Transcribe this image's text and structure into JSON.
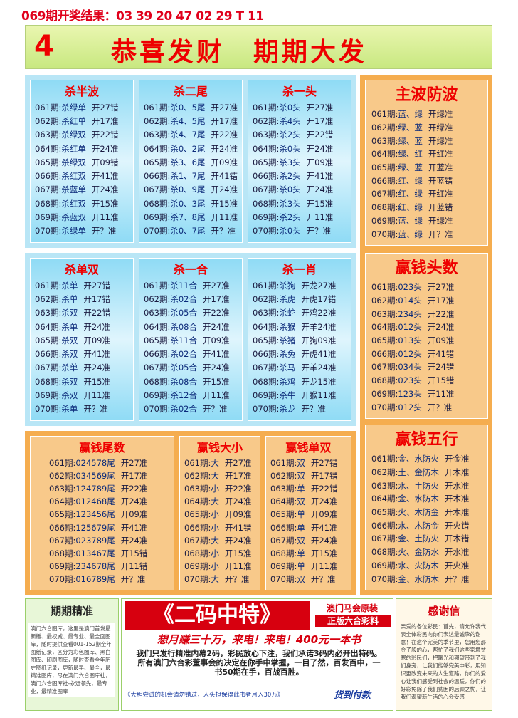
{
  "header": {
    "result": "069期开奖结果：03 39 20 47 02 29 T 11",
    "number": "4",
    "slogan": "恭喜发财　期期大发"
  },
  "panels": [
    {
      "title": "杀半波",
      "rows": [
        [
          "061期:",
          "杀绿单",
          "开27错"
        ],
        [
          "062期:",
          "杀红单",
          "开17准"
        ],
        [
          "063期:",
          "杀绿双",
          "开22错"
        ],
        [
          "064期:",
          "杀红单",
          "开24准"
        ],
        [
          "065期:",
          "杀绿双",
          "开09错"
        ],
        [
          "066期:",
          "杀红双",
          "开41准"
        ],
        [
          "067期:",
          "杀蓝单",
          "开24准"
        ],
        [
          "068期:",
          "杀红双",
          "开15准"
        ],
        [
          "069期:",
          "杀蓝双",
          "开11准"
        ],
        [
          "070期:",
          "杀绿单",
          "开？准"
        ]
      ]
    },
    {
      "title": "杀二尾",
      "rows": [
        [
          "061期:",
          "杀0、5尾",
          "开27准"
        ],
        [
          "062期:",
          "杀4、5尾",
          "开17准"
        ],
        [
          "063期:",
          "杀4、7尾",
          "开22准"
        ],
        [
          "064期:",
          "杀0、2尾",
          "开24准"
        ],
        [
          "065期:",
          "杀3、6尾",
          "开09准"
        ],
        [
          "066期:",
          "杀1、7尾",
          "开41错"
        ],
        [
          "067期:",
          "杀0、9尾",
          "开24准"
        ],
        [
          "068期:",
          "杀0、3尾",
          "开15准"
        ],
        [
          "069期:",
          "杀7、8尾",
          "开11准"
        ],
        [
          "070期:",
          "杀0、7尾",
          "开？准"
        ]
      ]
    },
    {
      "title": "杀一头",
      "rows": [
        [
          "061期:",
          "杀0头",
          "开27准"
        ],
        [
          "062期:",
          "杀4头",
          "开17准"
        ],
        [
          "063期:",
          "杀2头",
          "开22错"
        ],
        [
          "064期:",
          "杀0头",
          "开24准"
        ],
        [
          "065期:",
          "杀3头",
          "开09准"
        ],
        [
          "066期:",
          "杀2头",
          "开41准"
        ],
        [
          "067期:",
          "杀0头",
          "开24准"
        ],
        [
          "068期:",
          "杀3头",
          "开15准"
        ],
        [
          "069期:",
          "杀2头",
          "开11准"
        ],
        [
          "070期:",
          "杀0头",
          "开？准"
        ]
      ]
    },
    {
      "title": "杀单双",
      "rows": [
        [
          "061期:",
          "杀单",
          "开27错"
        ],
        [
          "062期:",
          "杀单",
          "开17错"
        ],
        [
          "063期:",
          "杀双",
          "开22错"
        ],
        [
          "064期:",
          "杀单",
          "开24准"
        ],
        [
          "065期:",
          "杀双",
          "开09准"
        ],
        [
          "066期:",
          "杀双",
          "开41准"
        ],
        [
          "067期:",
          "杀单",
          "开24准"
        ],
        [
          "068期:",
          "杀双",
          "开15准"
        ],
        [
          "069期:",
          "杀双",
          "开11准"
        ],
        [
          "070期:",
          "杀单",
          "开？准"
        ]
      ]
    },
    {
      "title": "杀一合",
      "rows": [
        [
          "061期:",
          "杀11合",
          "开27准"
        ],
        [
          "062期:",
          "杀02合",
          "开17准"
        ],
        [
          "063期:",
          "杀05合",
          "开22准"
        ],
        [
          "064期:",
          "杀08合",
          "开24准"
        ],
        [
          "065期:",
          "杀11合",
          "开09准"
        ],
        [
          "066期:",
          "杀02合",
          "开41准"
        ],
        [
          "067期:",
          "杀05合",
          "开24准"
        ],
        [
          "068期:",
          "杀08合",
          "开15准"
        ],
        [
          "069期:",
          "杀12合",
          "开11准"
        ],
        [
          "070期:",
          "杀02合",
          "开？准"
        ]
      ]
    },
    {
      "title": "杀一肖",
      "rows": [
        [
          "061期:",
          "杀狗",
          "开龙27准"
        ],
        [
          "062期:",
          "杀虎",
          "开虎17错"
        ],
        [
          "063期:",
          "杀蛇",
          "开鸡22准"
        ],
        [
          "064期:",
          "杀猴",
          "开羊24准"
        ],
        [
          "065期:",
          "杀猪",
          "开狗09准"
        ],
        [
          "066期:",
          "杀兔",
          "开虎41准"
        ],
        [
          "067期:",
          "杀马",
          "开羊24准"
        ],
        [
          "068期:",
          "杀鸡",
          "开龙15准"
        ],
        [
          "069期:",
          "杀牛",
          "开猴11准"
        ],
        [
          "070期:",
          "杀龙",
          "开？准"
        ]
      ]
    },
    {
      "title": "赢钱尾数",
      "rows": [
        [
          "061期:",
          "024578尾",
          "开27准"
        ],
        [
          "062期:",
          "034569尾",
          "开17准"
        ],
        [
          "063期:",
          "124789尾",
          "开22准"
        ],
        [
          "064期:",
          "012468尾",
          "开24准"
        ],
        [
          "065期:",
          "123456尾",
          "开09准"
        ],
        [
          "066期:",
          "125679尾",
          "开41准"
        ],
        [
          "067期:",
          "023789尾",
          "开24准"
        ],
        [
          "068期:",
          "013467尾",
          "开15错"
        ],
        [
          "069期:",
          "234678尾",
          "开11错"
        ],
        [
          "070期:",
          "016789尾",
          "开？准"
        ]
      ]
    },
    {
      "title": "赢钱大小",
      "rows": [
        [
          "061期:",
          "大",
          "开27准"
        ],
        [
          "062期:",
          "大",
          "开17准"
        ],
        [
          "063期:",
          "小",
          "开22准"
        ],
        [
          "064期:",
          "大",
          "开24准"
        ],
        [
          "065期:",
          "小",
          "开09准"
        ],
        [
          "066期:",
          "小",
          "开41错"
        ],
        [
          "067期:",
          "大",
          "开24准"
        ],
        [
          "068期:",
          "小",
          "开15准"
        ],
        [
          "069期:",
          "小",
          "开11准"
        ],
        [
          "070期:",
          "大",
          "开？准"
        ]
      ]
    },
    {
      "title": "赢钱单双",
      "rows": [
        [
          "061期:",
          "双",
          "开27错"
        ],
        [
          "062期:",
          "双",
          "开17错"
        ],
        [
          "063期:",
          "单",
          "开22错"
        ],
        [
          "064期:",
          "双",
          "开24准"
        ],
        [
          "065期:",
          "单",
          "开09准"
        ],
        [
          "066期:",
          "单",
          "开41准"
        ],
        [
          "067期:",
          "双",
          "开24准"
        ],
        [
          "068期:",
          "单",
          "开15准"
        ],
        [
          "069期:",
          "单",
          "开11准"
        ],
        [
          "070期:",
          "双",
          "开？准"
        ]
      ]
    },
    {
      "title": "主波防波",
      "rows": [
        [
          "061期:",
          "蓝、绿",
          "开绿准"
        ],
        [
          "062期:",
          "绿、蓝",
          "开绿准"
        ],
        [
          "063期:",
          "绿、蓝",
          "开绿准"
        ],
        [
          "064期:",
          "绿、红",
          "开红准"
        ],
        [
          "065期:",
          "绿、蓝",
          "开蓝准"
        ],
        [
          "066期:",
          "红、绿",
          "开蓝错"
        ],
        [
          "067期:",
          "红、绿",
          "开红准"
        ],
        [
          "068期:",
          "红、绿",
          "开蓝错"
        ],
        [
          "069期:",
          "蓝、绿",
          "开绿准"
        ],
        [
          "070期:",
          "蓝、绿",
          "开？准"
        ]
      ]
    },
    {
      "title": "赢钱头数",
      "rows": [
        [
          "061期:",
          "023头",
          "开27准"
        ],
        [
          "062期:",
          "014头",
          "开17准"
        ],
        [
          "063期:",
          "234头",
          "开22准"
        ],
        [
          "064期:",
          "012头",
          "开24准"
        ],
        [
          "065期:",
          "013头",
          "开09准"
        ],
        [
          "066期:",
          "012头",
          "开41错"
        ],
        [
          "067期:",
          "034头",
          "开24错"
        ],
        [
          "068期:",
          "023头",
          "开15错"
        ],
        [
          "069期:",
          "123头",
          "开11准"
        ],
        [
          "070期:",
          "012头",
          "开？准"
        ]
      ]
    },
    {
      "title": "赢钱五行",
      "rows": [
        [
          "061期:",
          "金、水防火",
          "开金准"
        ],
        [
          "062期:",
          "土、金防木",
          "开木准"
        ],
        [
          "063期:",
          "水、土防火",
          "开水准"
        ],
        [
          "064期:",
          "金、水防木",
          "开木准"
        ],
        [
          "065期:",
          "火、木防金",
          "开木准"
        ],
        [
          "066期:",
          "水、木防金",
          "开火错"
        ],
        [
          "067期:",
          "金、土防火",
          "开木错"
        ],
        [
          "068期:",
          "火、金防水",
          "开水准"
        ],
        [
          "069期:",
          "水、火防木",
          "开火准"
        ],
        [
          "070期:",
          "金、水防木",
          "开？准"
        ]
      ]
    }
  ],
  "footer": {
    "left": {
      "title": "期期精准",
      "text": "澳门六合图库，这里是澳门首发最新版、最权威、最专业、最全面图库，随时提供查看001-152期全年图纸记录，区分为彩色图库、黑白图库、印刷图库，随时查看全年历史图纸记录，更新最早、最全，最精准图库，尽在澳门六合图库社，澳门六合图库社-永远领先，最专业，最精准图库"
    },
    "center": {
      "title": "《二码中特》",
      "badge1": "澳门马会原装",
      "badge2": "正版六合彩料",
      "slogan": "想月赚三十万，来电！来电！400元一本书",
      "text": "我们只发行精准内幕2码，彩民放心下注，我们承诺3码内必开出特码。所有澳门六合彩董事会的决定在你手中掌握，一目了然，百发百中，一书50期在手，百战百胜。",
      "note": "《大胆尝试的机会请勿错过，人头担保得此书者月入30万》",
      "cod": "货到付款"
    },
    "right": {
      "title": "感谢信",
      "text": "亲爱的各位彩民：首先，请允许我代表全体彩民向你们表达最诚挚的谢意！在这个完美的季节里，您用您那金子般的心，帮忙了我们这些家境贫寒的彩民们，把曙光和期望带到了我们身旁，让我们能够完美中彩，用知识更改变未来的人生道路，你们的爱心让我们感受到社会的温暖，你们的好彩免除了我们贫困的后顾之忧，让我们渴望新生活的心会受感"
    }
  }
}
